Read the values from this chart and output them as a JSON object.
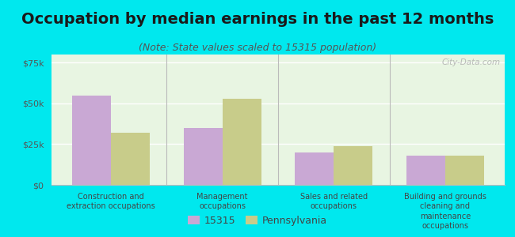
{
  "title": "Occupation by median earnings in the past 12 months",
  "subtitle": "(Note: State values scaled to 15315 population)",
  "categories": [
    "Construction and\nextraction occupations",
    "Management\noccupations",
    "Sales and related\noccupations",
    "Building and grounds\ncleaning and\nmaintenance\noccupations"
  ],
  "values_15315": [
    55000,
    35000,
    20000,
    18000
  ],
  "values_pennsylvania": [
    32000,
    53000,
    24000,
    18000
  ],
  "bar_color_15315": "#c9a8d4",
  "bar_color_pennsylvania": "#c8cc8a",
  "background_outer": "#00e8ee",
  "background_plot": "#e8f5e2",
  "ylim": [
    0,
    80000
  ],
  "yticks": [
    0,
    25000,
    50000,
    75000
  ],
  "ytick_labels": [
    "$0",
    "$25k",
    "$50k",
    "$75k"
  ],
  "legend_label_1": "15315",
  "legend_label_2": "Pennsylvania",
  "bar_width": 0.35,
  "watermark": "City-Data.com",
  "title_fontsize": 14,
  "subtitle_fontsize": 9
}
